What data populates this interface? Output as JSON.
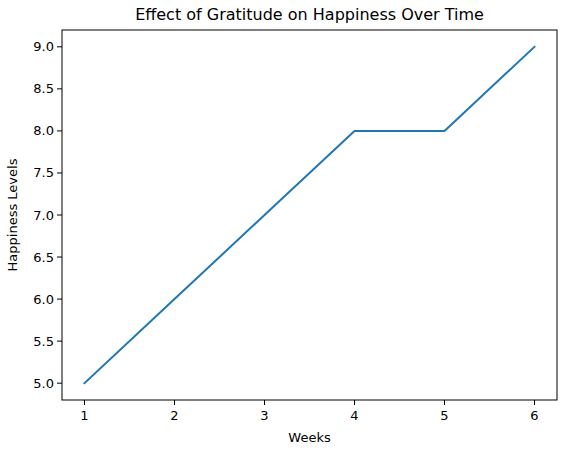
{
  "chart_data": {
    "type": "line",
    "title": "Effect of Gratitude on Happiness Over Time",
    "x_label": "Weeks",
    "y_label": "Happiness Levels",
    "x": [
      1,
      2,
      3,
      4,
      5,
      6
    ],
    "values": [
      5,
      6,
      7,
      8,
      8,
      9
    ],
    "color": "#1f77b4",
    "xlim": [
      0.75,
      6.25
    ],
    "xticks": [
      1,
      2,
      3,
      4,
      5,
      6
    ],
    "ylim": [
      4.8,
      9.2
    ],
    "yticks": [
      {
        "value": 5,
        "label": "5.0"
      },
      5.5,
      {
        "value": 6,
        "label": "6.0"
      },
      6.5,
      {
        "value": 7,
        "label": "7.0"
      },
      7.5,
      {
        "value": 8,
        "label": "8.0"
      },
      8.5,
      {
        "value": 9,
        "label": "9.0"
      }
    ],
    "grid": false
  }
}
